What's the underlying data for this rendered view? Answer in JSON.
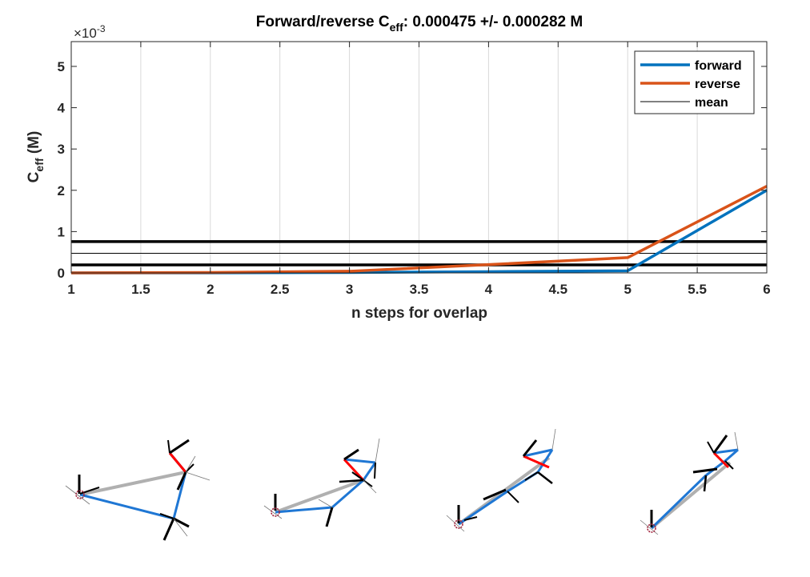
{
  "chart_data": {
    "type": "line",
    "title": {
      "prefix": "Forward/reverse C",
      "sub": "eff",
      "suffix": ": 0.000475 +/- 0.000282 M"
    },
    "xlabel": "n steps for overlap",
    "ylabel": {
      "main": "C",
      "sub": "eff",
      "unit": " (M)"
    },
    "y_exponent": {
      "base": "×10",
      "exp": "-3"
    },
    "xlim": [
      1,
      6
    ],
    "ylim": [
      0,
      5.6
    ],
    "xticks": [
      1,
      1.5,
      2,
      2.5,
      3,
      3.5,
      4,
      4.5,
      5,
      5.5,
      6
    ],
    "xtick_labels": [
      "1",
      "1.5",
      "2",
      "2.5",
      "3",
      "3.5",
      "4",
      "4.5",
      "5",
      "5.5",
      "6"
    ],
    "yticks": [
      0,
      1,
      2,
      3,
      4,
      5
    ],
    "ytick_labels": [
      "0",
      "1",
      "2",
      "3",
      "4",
      "5"
    ],
    "grid": "x",
    "legend_position": "top-right",
    "series": [
      {
        "name": "forward",
        "color": "#0072BD",
        "width": "thick",
        "x": [
          1,
          2,
          3,
          4,
          5,
          6
        ],
        "y": [
          0,
          0,
          0.01,
          0.03,
          0.05,
          2.0
        ]
      },
      {
        "name": "reverse",
        "color": "#D95319",
        "width": "thick",
        "x": [
          1,
          2,
          3,
          4,
          5,
          6
        ],
        "y": [
          0,
          0.01,
          0.04,
          0.2,
          0.37,
          2.1
        ]
      }
    ],
    "hlines": [
      {
        "name": "mean",
        "y": 0.475,
        "color": "#000000",
        "width": "thin",
        "legend": true
      },
      {
        "name": "mean-plus-std",
        "y": 0.757,
        "color": "#000000",
        "width": "thick",
        "legend": false
      },
      {
        "name": "mean-minus-std",
        "y": 0.193,
        "color": "#000000",
        "width": "thick",
        "legend": false
      }
    ]
  },
  "molecules_panel": {
    "count": 4,
    "colors": {
      "forward": "#1f77d4",
      "reverse": "#b0b0b0",
      "highlight": "#ff0000",
      "marker": "#a0213a"
    }
  }
}
